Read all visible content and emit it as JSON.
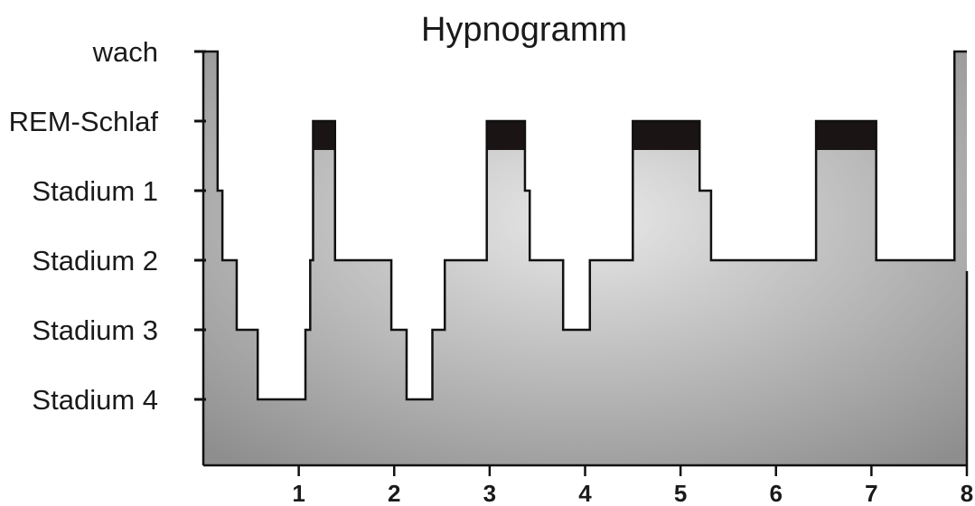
{
  "chart_data": {
    "type": "step",
    "title": "Hypnogramm",
    "xlabel": "",
    "ylabel": "",
    "xlim": [
      0,
      8
    ],
    "x_ticks": [
      "1",
      "2",
      "3",
      "4",
      "5",
      "6",
      "7",
      "8"
    ],
    "stages": [
      "wach",
      "REM-Schlaf",
      "Stadium 1",
      "Stadium 2",
      "Stadium 3",
      "Stadium 4"
    ],
    "stage_values": {
      "wach": 0,
      "REM-Schlaf": 1,
      "Stadium 1": 2,
      "Stadium 2": 3,
      "Stadium 3": 4,
      "Stadium 4": 5
    },
    "segments": [
      {
        "x0": 0.0,
        "x1": 0.15,
        "stage": "wach"
      },
      {
        "x0": 0.15,
        "x1": 0.2,
        "stage": "Stadium 1"
      },
      {
        "x0": 0.2,
        "x1": 0.35,
        "stage": "Stadium 2"
      },
      {
        "x0": 0.35,
        "x1": 0.57,
        "stage": "Stadium 3"
      },
      {
        "x0": 0.57,
        "x1": 1.07,
        "stage": "Stadium 4"
      },
      {
        "x0": 1.07,
        "x1": 1.12,
        "stage": "Stadium 3"
      },
      {
        "x0": 1.12,
        "x1": 1.15,
        "stage": "Stadium 2"
      },
      {
        "x0": 1.15,
        "x1": 1.38,
        "stage": "REM-Schlaf"
      },
      {
        "x0": 1.38,
        "x1": 1.97,
        "stage": "Stadium 2"
      },
      {
        "x0": 1.97,
        "x1": 2.13,
        "stage": "Stadium 3"
      },
      {
        "x0": 2.13,
        "x1": 2.4,
        "stage": "Stadium 4"
      },
      {
        "x0": 2.4,
        "x1": 2.53,
        "stage": "Stadium 3"
      },
      {
        "x0": 2.53,
        "x1": 2.97,
        "stage": "Stadium 2"
      },
      {
        "x0": 2.97,
        "x1": 3.37,
        "stage": "REM-Schlaf"
      },
      {
        "x0": 3.37,
        "x1": 3.42,
        "stage": "Stadium 1"
      },
      {
        "x0": 3.42,
        "x1": 3.77,
        "stage": "Stadium 2"
      },
      {
        "x0": 3.77,
        "x1": 4.05,
        "stage": "Stadium 3"
      },
      {
        "x0": 4.05,
        "x1": 4.5,
        "stage": "Stadium 2"
      },
      {
        "x0": 4.5,
        "x1": 5.2,
        "stage": "REM-Schlaf"
      },
      {
        "x0": 5.2,
        "x1": 5.32,
        "stage": "Stadium 1"
      },
      {
        "x0": 5.32,
        "x1": 6.42,
        "stage": "Stadium 2"
      },
      {
        "x0": 6.42,
        "x1": 7.05,
        "stage": "REM-Schlaf"
      },
      {
        "x0": 7.05,
        "x1": 7.87,
        "stage": "Stadium 2"
      },
      {
        "x0": 7.87,
        "x1": 8.0,
        "stage": "wach"
      }
    ],
    "grid": false,
    "rem_color": "#1a1414",
    "fill_center_color": "#e8e8e8",
    "fill_edge_color": "#8e8e8e",
    "line_color": "#111111"
  }
}
